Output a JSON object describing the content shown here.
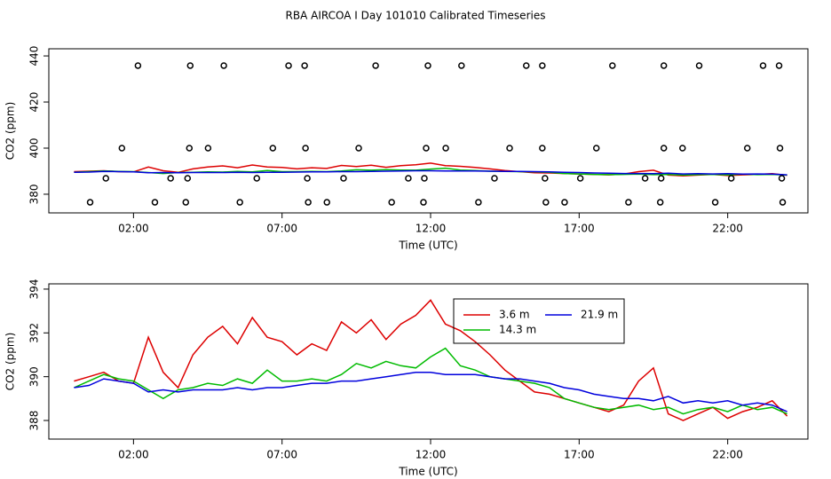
{
  "chart_data": [
    {
      "type": "line",
      "title": "RBA AIRCOA I  Day 101010  Calibrated Timeseries",
      "xlabel": "Time (UTC)",
      "ylabel": "CO2 (ppm)",
      "xlim": [
        -0.85,
        24.7
      ],
      "ylim": [
        371.9,
        443.1
      ],
      "xticks": [
        {
          "value": 2,
          "label": "02:00"
        },
        {
          "value": 7,
          "label": "07:00"
        },
        {
          "value": 12,
          "label": "12:00"
        },
        {
          "value": 17,
          "label": "17:00"
        },
        {
          "value": 22,
          "label": "22:00"
        }
      ],
      "yticks": [
        380,
        400,
        420,
        440
      ],
      "x": [
        0,
        0.5,
        1,
        1.5,
        2,
        2.5,
        3,
        3.5,
        4,
        4.5,
        5,
        5.5,
        6,
        6.5,
        7,
        7.5,
        8,
        8.5,
        9,
        9.5,
        10,
        10.5,
        11,
        11.5,
        12,
        12.5,
        13,
        13.5,
        14,
        14.5,
        15,
        15.5,
        16,
        16.5,
        17,
        17.5,
        18,
        18.5,
        19,
        19.5,
        20,
        20.5,
        21,
        21.5,
        22,
        22.5,
        23,
        23.5,
        24
      ],
      "series": [
        {
          "color": "#dd0000",
          "values": [
            389.8,
            390,
            390.2,
            389.8,
            389.7,
            391.8,
            390.2,
            389.5,
            391,
            391.8,
            392.3,
            391.5,
            392.7,
            391.8,
            391.6,
            391,
            391.5,
            391.2,
            392.5,
            392,
            392.6,
            391.7,
            392.4,
            392.8,
            393.5,
            392.4,
            392.1,
            391.6,
            391,
            390.3,
            389.8,
            389.3,
            389.2,
            389.0,
            388.8,
            388.6,
            388.4,
            388.7,
            389.8,
            390.4,
            388.3,
            388.0,
            388.3,
            388.6,
            388.1,
            388.4,
            388.6,
            388.9,
            388.2
          ]
        },
        {
          "color": "#00bb00",
          "values": [
            389.5,
            389.8,
            390.1,
            389.9,
            389.8,
            389.4,
            389.0,
            389.4,
            389.5,
            389.7,
            389.6,
            389.9,
            389.7,
            390.3,
            389.8,
            389.8,
            389.9,
            389.8,
            390.1,
            390.6,
            390.4,
            390.7,
            390.5,
            390.4,
            390.9,
            391.3,
            390.5,
            390.3,
            390.0,
            389.9,
            389.8,
            389.7,
            389.5,
            389.0,
            388.8,
            388.6,
            388.5,
            388.6,
            388.7,
            388.5,
            388.6,
            388.3,
            388.5,
            388.6,
            388.4,
            388.7,
            388.5,
            388.6,
            388.3
          ]
        },
        {
          "color": "#0000dd",
          "values": [
            389.5,
            389.6,
            389.9,
            389.8,
            389.7,
            389.3,
            389.4,
            389.3,
            389.4,
            389.4,
            389.4,
            389.5,
            389.4,
            389.5,
            389.5,
            389.6,
            389.7,
            389.7,
            389.8,
            389.8,
            389.9,
            390.0,
            390.1,
            390.2,
            390.2,
            390.1,
            390.1,
            390.1,
            390.0,
            389.9,
            389.9,
            389.8,
            389.7,
            389.5,
            389.4,
            389.2,
            389.1,
            389.0,
            389.0,
            388.9,
            389.1,
            388.8,
            388.9,
            388.8,
            388.9,
            388.7,
            388.8,
            388.7,
            388.4
          ]
        },
        {
          "color": "#000000",
          "marker": "circle",
          "x": [
            2.15,
            3.91,
            5.04,
            7.22,
            7.76,
            10.15,
            11.91,
            13.04,
            15.22,
            15.76,
            18.12,
            19.85,
            21.04,
            23.19,
            23.73,
            1.61,
            3.88,
            4.51,
            6.69,
            7.79,
            9.58,
            11.85,
            12.51,
            14.66,
            15.76,
            17.58,
            19.85,
            20.48,
            22.66,
            23.76,
            1.07,
            3.25,
            3.82,
            6.15,
            7.85,
            9.07,
            11.25,
            11.79,
            14.15,
            15.85,
            17.04,
            19.22,
            19.76,
            22.12,
            23.82,
            0.54,
            2.72,
            3.76,
            5.58,
            7.88,
            8.51,
            10.69,
            11.76,
            13.61,
            15.88,
            16.51,
            18.66,
            19.73,
            21.58,
            23.85
          ],
          "values": [
            435.8,
            435.8,
            435.8,
            435.8,
            435.8,
            435.8,
            435.8,
            435.8,
            435.8,
            435.8,
            435.8,
            435.8,
            435.8,
            435.8,
            435.8,
            400,
            400,
            400,
            400,
            400,
            400,
            400,
            400,
            400,
            400,
            400,
            400,
            400,
            400,
            400,
            386.9,
            386.9,
            386.9,
            386.9,
            386.9,
            386.9,
            386.9,
            386.9,
            386.9,
            386.9,
            386.9,
            386.9,
            386.9,
            386.9,
            386.9,
            376.5,
            376.5,
            376.5,
            376.5,
            376.5,
            376.5,
            376.5,
            376.5,
            376.5,
            376.5,
            376.5,
            376.5,
            376.5,
            376.5,
            376.5
          ]
        }
      ]
    },
    {
      "type": "line",
      "xlabel": "Time (UTC)",
      "ylabel": "CO2 (ppm)",
      "xlim": [
        -0.85,
        24.7
      ],
      "ylim": [
        387.15,
        394.24
      ],
      "xticks": [
        {
          "value": 2,
          "label": "02:00"
        },
        {
          "value": 7,
          "label": "07:00"
        },
        {
          "value": 12,
          "label": "12:00"
        },
        {
          "value": 17,
          "label": "17:00"
        },
        {
          "value": 22,
          "label": "22:00"
        }
      ],
      "yticks": [
        388,
        390,
        392,
        394
      ],
      "legend": "inside",
      "x": [
        0,
        0.5,
        1,
        1.5,
        2,
        2.5,
        3,
        3.5,
        4,
        4.5,
        5,
        5.5,
        6,
        6.5,
        7,
        7.5,
        8,
        8.5,
        9,
        9.5,
        10,
        10.5,
        11,
        11.5,
        12,
        12.5,
        13,
        13.5,
        14,
        14.5,
        15,
        15.5,
        16,
        16.5,
        17,
        17.5,
        18,
        18.5,
        19,
        19.5,
        20,
        20.5,
        21,
        21.5,
        22,
        22.5,
        23,
        23.5,
        24
      ],
      "series": [
        {
          "name": "3.6 m",
          "color": "#dd0000",
          "values": [
            389.8,
            390,
            390.2,
            389.8,
            389.7,
            391.8,
            390.2,
            389.5,
            391,
            391.8,
            392.3,
            391.5,
            392.7,
            391.8,
            391.6,
            391,
            391.5,
            391.2,
            392.5,
            392,
            392.6,
            391.7,
            392.4,
            392.8,
            393.5,
            392.4,
            392.1,
            391.6,
            391,
            390.3,
            389.8,
            389.3,
            389.2,
            389.0,
            388.8,
            388.6,
            388.4,
            388.7,
            389.8,
            390.4,
            388.3,
            388.0,
            388.3,
            388.6,
            388.1,
            388.4,
            388.6,
            388.9,
            388.2
          ]
        },
        {
          "name": "14.3 m",
          "color": "#00bb00",
          "values": [
            389.5,
            389.8,
            390.1,
            389.9,
            389.8,
            389.4,
            389.0,
            389.4,
            389.5,
            389.7,
            389.6,
            389.9,
            389.7,
            390.3,
            389.8,
            389.8,
            389.9,
            389.8,
            390.1,
            390.6,
            390.4,
            390.7,
            390.5,
            390.4,
            390.9,
            391.3,
            390.5,
            390.3,
            390.0,
            389.9,
            389.8,
            389.7,
            389.5,
            389.0,
            388.8,
            388.6,
            388.5,
            388.6,
            388.7,
            388.5,
            388.6,
            388.3,
            388.5,
            388.6,
            388.4,
            388.7,
            388.5,
            388.6,
            388.3
          ]
        },
        {
          "name": "21.9 m",
          "color": "#0000dd",
          "values": [
            389.5,
            389.6,
            389.9,
            389.8,
            389.7,
            389.3,
            389.4,
            389.3,
            389.4,
            389.4,
            389.4,
            389.5,
            389.4,
            389.5,
            389.5,
            389.6,
            389.7,
            389.7,
            389.8,
            389.8,
            389.9,
            390.0,
            390.1,
            390.2,
            390.2,
            390.1,
            390.1,
            390.1,
            390.0,
            389.9,
            389.9,
            389.8,
            389.7,
            389.5,
            389.4,
            389.2,
            389.1,
            389.0,
            389.0,
            388.9,
            389.1,
            388.8,
            388.9,
            388.8,
            388.9,
            388.7,
            388.8,
            388.7,
            388.4
          ]
        }
      ]
    }
  ]
}
